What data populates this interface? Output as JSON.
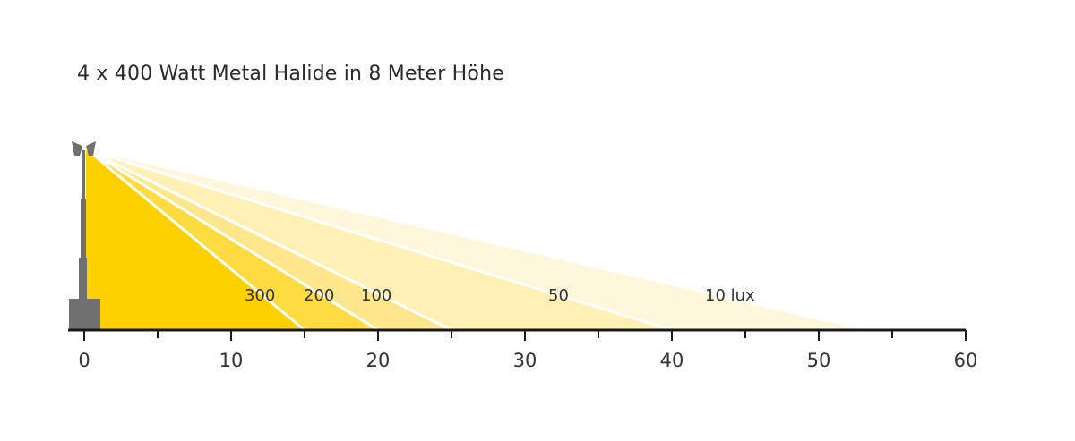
{
  "title": "4 x 400 Watt Metal Halide in 8 Meter Höhe",
  "colors": {
    "zone_300": "#fdd000",
    "zone_200": "#fedb40",
    "zone_100": "#fee68c",
    "zone_50": "#fff0b6",
    "zone_10": "#fff7dc",
    "divider": "#ffffff",
    "pole": "#707070",
    "axis": "#1a1a1a"
  },
  "chart_data": {
    "type": "area",
    "title": "4 x 400 Watt Metal Halide in 8 Meter Höhe",
    "xlabel": "",
    "ylabel": "",
    "xlim": [
      0,
      60
    ],
    "x_ticks": [
      0,
      10,
      20,
      30,
      40,
      50,
      60
    ],
    "x_tick_labels": [
      "0",
      "10",
      "20",
      "30",
      "40",
      "50",
      "60"
    ],
    "minor_tick_step": 5,
    "mount_height": 8,
    "zones": [
      {
        "label": "300",
        "reach": 15
      },
      {
        "label": "200",
        "reach": 20
      },
      {
        "label": "100",
        "reach": 25
      },
      {
        "label": "50",
        "reach": 40
      },
      {
        "label": "10 lux",
        "reach": 53
      }
    ]
  }
}
